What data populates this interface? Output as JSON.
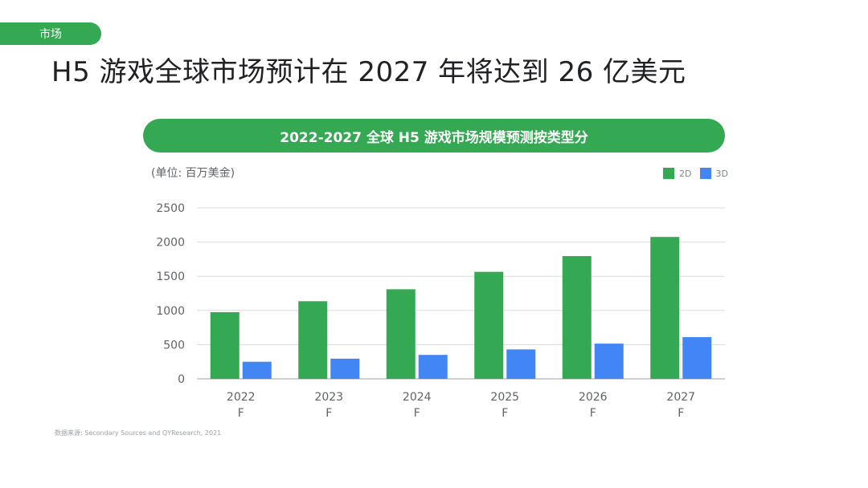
{
  "tag": "市场",
  "page_title": "H5 游戏全球市场预计在 2027 年将达到 26 亿美元",
  "chart_data": {
    "type": "bar",
    "title": "2022-2027 全球 H5 游戏市场规模预测按类型分",
    "ylabel": "(单位: 百万美金)",
    "xlabel": "",
    "categories": [
      "2022 F",
      "2023 F",
      "2024 F",
      "2025 F",
      "2026 F",
      "2027 F"
    ],
    "series": [
      {
        "name": "2D",
        "color": "#34a853",
        "values": [
          975,
          1135,
          1310,
          1565,
          1795,
          2075
        ]
      },
      {
        "name": "3D",
        "color": "#4285f4",
        "values": [
          250,
          295,
          350,
          430,
          515,
          610
        ]
      }
    ],
    "ylim": [
      0,
      2500
    ],
    "yticks": [
      0,
      500,
      1000,
      1500,
      2000,
      2500
    ],
    "grid": true,
    "legend": "top-right"
  },
  "source": "数据来源: Secondary Sources and QYResearch, 2021"
}
